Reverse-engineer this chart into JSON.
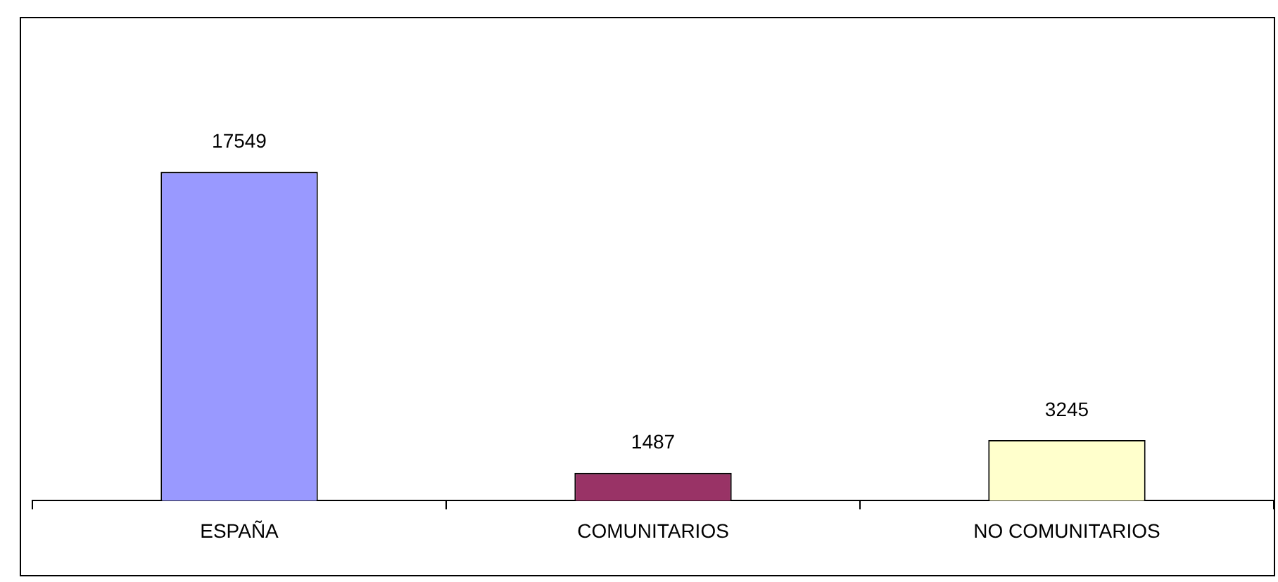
{
  "chart_data": {
    "type": "bar",
    "categories": [
      "ESPAÑA",
      "COMUNITARIOS",
      "NO COMUNITARIOS"
    ],
    "values": [
      17549,
      1487,
      3245
    ],
    "colors": [
      "#9999ff",
      "#993366",
      "#ffffcc"
    ],
    "data_labels": true,
    "grid": false,
    "legend": false
  }
}
